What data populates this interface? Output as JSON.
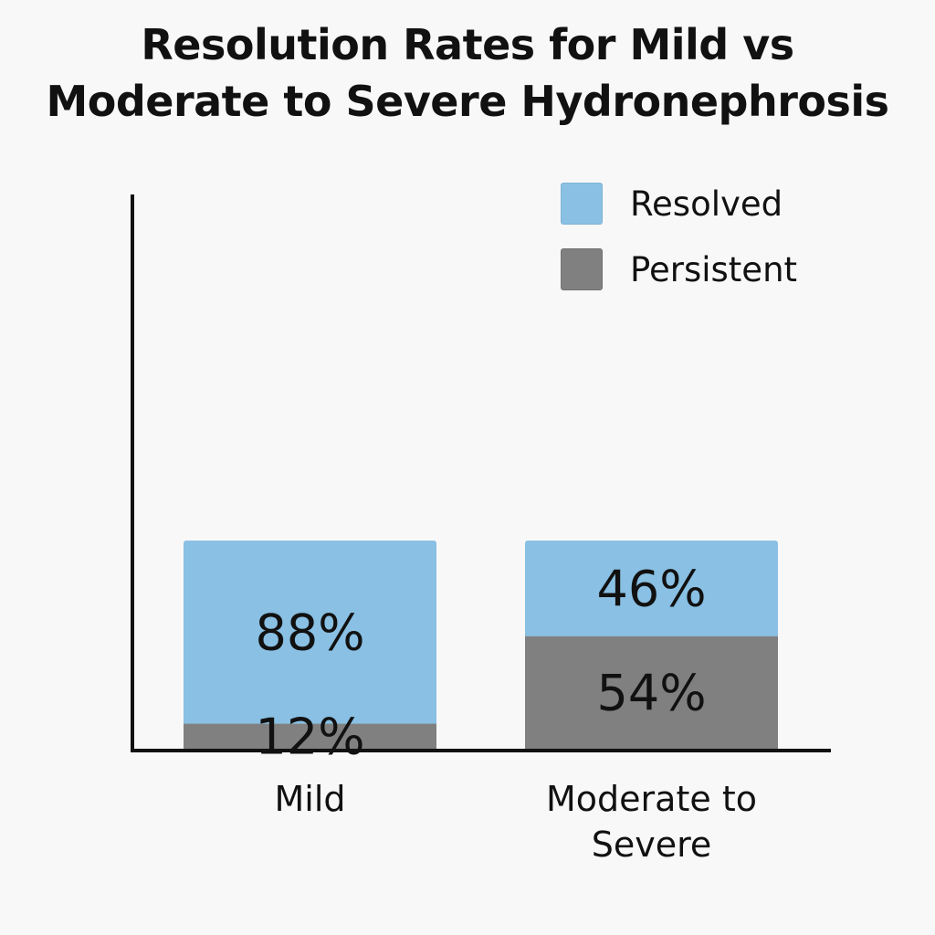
{
  "chart_data": {
    "type": "bar",
    "stacked": true,
    "title_lines": [
      "Resolution Rates for Mild vs",
      "Moderate to Severe Hydronephrosis"
    ],
    "categories": [
      {
        "lines": [
          "Mild"
        ]
      },
      {
        "lines": [
          "Moderate to",
          "Severe"
        ]
      }
    ],
    "series": [
      {
        "name": "Persistent",
        "color": "#808080",
        "values": [
          12,
          54
        ],
        "labels": [
          "12%",
          "54%"
        ]
      },
      {
        "name": "Resolved",
        "color": "#89c0e3",
        "values": [
          88,
          46
        ],
        "labels": [
          "88%",
          "46%"
        ]
      }
    ],
    "legend": [
      {
        "label": "Resolved",
        "color": "#89c0e3"
      },
      {
        "label": "Persistent",
        "color": "#808080"
      }
    ],
    "legend_position": "top-right",
    "grid": false,
    "xlabel": "",
    "ylabel": ""
  }
}
